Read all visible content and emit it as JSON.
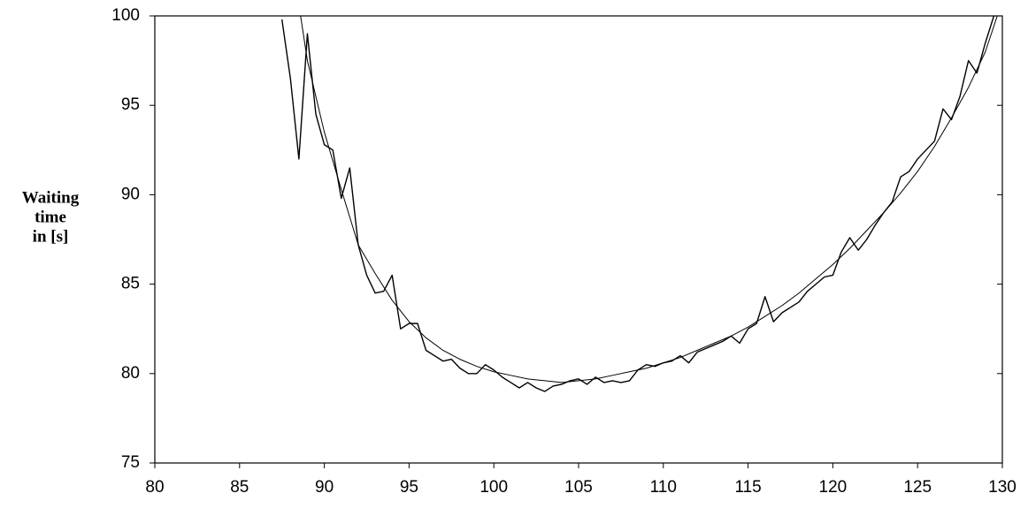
{
  "chart_data": {
    "type": "line",
    "ylabel": [
      "Waiting",
      "time",
      "in [s]"
    ],
    "xlim": [
      80,
      130
    ],
    "xticks": [
      80,
      85,
      90,
      95,
      100,
      105,
      110,
      115,
      120,
      125,
      130
    ],
    "ylim": [
      75,
      100
    ],
    "yticks": [
      75,
      80,
      85,
      90,
      95,
      100
    ],
    "grid": false,
    "series": [
      {
        "color": "#000000",
        "width": 1.4,
        "x": [
          87.5,
          88,
          88.5,
          89,
          89.5,
          90,
          90.5,
          91,
          91.5,
          92,
          92.5,
          93,
          93.5,
          94,
          94.5,
          95,
          95.5,
          96,
          96.5,
          97,
          97.5,
          98,
          98.5,
          99,
          99.5,
          100,
          100.5,
          101,
          101.5,
          102,
          102.5,
          103,
          103.5,
          104,
          104.5,
          105,
          105.5,
          106,
          106.5,
          107,
          107.5,
          108,
          108.5,
          109,
          109.5,
          110,
          110.5,
          111,
          111.5,
          112,
          112.5,
          113,
          113.5,
          114,
          114.5,
          115,
          115.5,
          116,
          116.5,
          117,
          117.5,
          118,
          118.5,
          119,
          119.5,
          120,
          120.5,
          121,
          121.5,
          122,
          122.5,
          123,
          123.5,
          124,
          124.5,
          125,
          125.5,
          126,
          126.5,
          127,
          127.5,
          128,
          128.5,
          129,
          129.5
        ],
        "values": [
          99.8,
          96.5,
          92,
          99,
          94.5,
          92.8,
          92.5,
          89.8,
          91.5,
          87.2,
          85.5,
          84.5,
          84.6,
          85.5,
          82.5,
          82.8,
          82.8,
          81.3,
          81.0,
          80.7,
          80.8,
          80.3,
          80.0,
          80.0,
          80.5,
          80.2,
          79.8,
          79.5,
          79.2,
          79.5,
          79.2,
          79.0,
          79.3,
          79.4,
          79.6,
          79.7,
          79.4,
          79.8,
          79.5,
          79.6,
          79.5,
          79.6,
          80.2,
          80.5,
          80.4,
          80.6,
          80.7,
          81.0,
          80.6,
          81.2,
          81.4,
          81.6,
          81.8,
          82.1,
          81.7,
          82.5,
          82.8,
          84.3,
          82.9,
          83.4,
          83.7,
          84.0,
          84.6,
          85.0,
          85.4,
          85.5,
          86.8,
          87.6,
          86.9,
          87.5,
          88.3,
          89.0,
          89.6,
          91.0,
          91.3,
          92.0,
          92.5,
          93.0,
          94.8,
          94.2,
          95.5,
          97.5,
          96.8,
          98.5,
          100
        ]
      },
      {
        "color": "#000000",
        "width": 1,
        "x": [
          88.6,
          89,
          90,
          91,
          92,
          93,
          94,
          95,
          96,
          97,
          98,
          99,
          100,
          101,
          102,
          103,
          104,
          105,
          106,
          107,
          108,
          109,
          110,
          111,
          112,
          113,
          114,
          115,
          116,
          117,
          118,
          119,
          120,
          121,
          122,
          123,
          124,
          125,
          126,
          127,
          128,
          129,
          129.7
        ],
        "values": [
          100,
          97.5,
          93.5,
          90.3,
          87.2,
          85.6,
          84.1,
          82.9,
          82.0,
          81.3,
          80.8,
          80.4,
          80.1,
          79.9,
          79.7,
          79.6,
          79.5,
          79.6,
          79.7,
          79.9,
          80.1,
          80.3,
          80.6,
          80.9,
          81.3,
          81.7,
          82.1,
          82.6,
          83.2,
          83.8,
          84.5,
          85.3,
          86.1,
          87.0,
          88.0,
          89.0,
          90.1,
          91.3,
          92.7,
          94.3,
          96.0,
          98.0,
          100
        ]
      }
    ]
  }
}
